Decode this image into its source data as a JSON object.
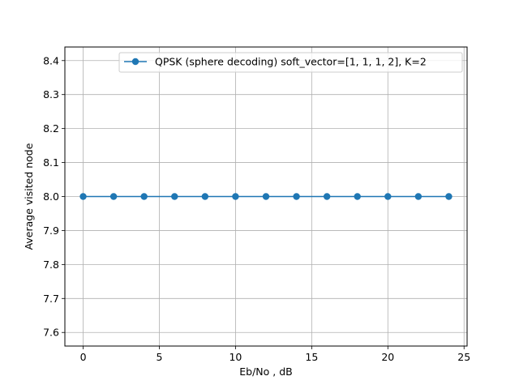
{
  "chart_data": {
    "type": "line",
    "title": "",
    "xlabel": "Eb/No , dB",
    "ylabel": "Average visited node",
    "xlim": [
      -1.2,
      25.2
    ],
    "ylim": [
      7.56,
      8.44
    ],
    "xticks": [
      0,
      5,
      10,
      15,
      20,
      25
    ],
    "xtick_labels": [
      "0",
      "5",
      "10",
      "15",
      "20",
      "25"
    ],
    "yticks": [
      7.6,
      7.7,
      7.8,
      7.9,
      8.0,
      8.1,
      8.2,
      8.3,
      8.4
    ],
    "ytick_labels": [
      "7.6",
      "7.7",
      "7.8",
      "7.9",
      "8.0",
      "8.1",
      "8.2",
      "8.3",
      "8.4"
    ],
    "grid": true,
    "legend_position": "top-right",
    "series": [
      {
        "name": "QPSK (sphere decoding) soft_vector=[1, 1, 1, 2], K=2",
        "color": "#1f77b4",
        "marker": "circle",
        "x": [
          0,
          2,
          4,
          6,
          8,
          10,
          12,
          14,
          16,
          18,
          20,
          22,
          24
        ],
        "y": [
          8.0,
          8.0,
          8.0,
          8.0,
          8.0,
          8.0,
          8.0,
          8.0,
          8.0,
          8.0,
          8.0,
          8.0,
          8.0
        ]
      }
    ]
  }
}
